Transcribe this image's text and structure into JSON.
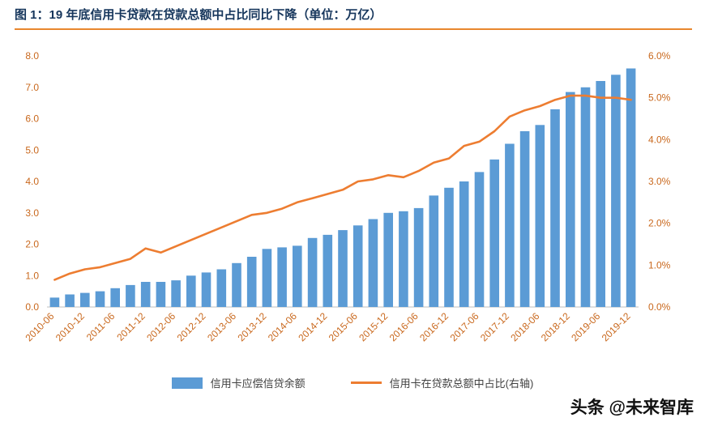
{
  "header": {
    "title": "图 1：19 年底信用卡贷款在贷款总额中占比同比下降（单位：万亿）"
  },
  "colors": {
    "bar": "#5B9BD5",
    "line": "#ED7D31",
    "title": "#16365C",
    "divider": "#E8872E",
    "axis_label": "#C9681D",
    "axis_line": "#BFBFBF",
    "legend_text": "#404040",
    "watermark": "#111111"
  },
  "chart_data": {
    "type": "combo",
    "title": "图 1：19 年底信用卡贷款在贷款总额中占比同比下降（单位：万亿）",
    "x": [
      "2010-06",
      "2010-09",
      "2010-12",
      "2011-03",
      "2011-06",
      "2011-09",
      "2011-12",
      "2012-03",
      "2012-06",
      "2012-09",
      "2012-12",
      "2013-03",
      "2013-06",
      "2013-09",
      "2013-12",
      "2014-03",
      "2014-06",
      "2014-09",
      "2014-12",
      "2015-03",
      "2015-06",
      "2015-09",
      "2015-12",
      "2016-03",
      "2016-06",
      "2016-09",
      "2016-12",
      "2017-03",
      "2017-06",
      "2017-09",
      "2017-12",
      "2018-03",
      "2018-06",
      "2018-09",
      "2018-12",
      "2019-03",
      "2019-06",
      "2019-09",
      "2019-12"
    ],
    "x_label_every": 2,
    "x_labels_shown": [
      "2010-06",
      "2010-12",
      "2011-06",
      "2011-12",
      "2012-06",
      "2012-12",
      "2013-06",
      "2013-12",
      "2014-06",
      "2014-12",
      "2015-06",
      "2015-12",
      "2016-06",
      "2016-12",
      "2017-06",
      "2017-12",
      "2018-06",
      "2018-12",
      "2019-06",
      "2019-12"
    ],
    "series": [
      {
        "name": "信用卡应偿信贷余额",
        "chart_type": "bar",
        "axis": "left",
        "values": [
          0.3,
          0.4,
          0.45,
          0.5,
          0.6,
          0.7,
          0.8,
          0.8,
          0.85,
          1.0,
          1.1,
          1.2,
          1.4,
          1.6,
          1.85,
          1.9,
          1.95,
          2.2,
          2.3,
          2.45,
          2.6,
          2.8,
          3.0,
          3.05,
          3.15,
          3.55,
          3.8,
          4.0,
          4.3,
          4.7,
          5.2,
          5.6,
          5.8,
          6.3,
          6.85,
          7.0,
          7.2,
          7.4,
          7.6
        ]
      },
      {
        "name": "信用卡在贷款总额中占比(右轴)",
        "chart_type": "line",
        "axis": "right",
        "values": [
          0.65,
          0.8,
          0.9,
          0.95,
          1.05,
          1.15,
          1.4,
          1.3,
          1.45,
          1.6,
          1.75,
          1.9,
          2.05,
          2.2,
          2.25,
          2.35,
          2.5,
          2.6,
          2.7,
          2.8,
          3.0,
          3.05,
          3.15,
          3.1,
          3.25,
          3.45,
          3.55,
          3.85,
          3.95,
          4.2,
          4.55,
          4.7,
          4.8,
          4.95,
          5.05,
          5.05,
          5.0,
          5.0,
          4.95
        ]
      }
    ],
    "left_axis": {
      "min": 0,
      "max": 8,
      "step": 1,
      "tick_labels": [
        "0.0",
        "1.0",
        "2.0",
        "3.0",
        "4.0",
        "5.0",
        "6.0",
        "7.0",
        "8.0"
      ]
    },
    "right_axis": {
      "min": 0,
      "max": 6,
      "step": 1,
      "tick_labels": [
        "0.0%",
        "1.0%",
        "2.0%",
        "3.0%",
        "4.0%",
        "5.0%",
        "6.0%"
      ]
    },
    "grid": false,
    "legend_position": "bottom"
  },
  "legend": [
    {
      "label": "信用卡应偿信贷余额",
      "swatch": "bar"
    },
    {
      "label": "信用卡在贷款总额中占比(右轴)",
      "swatch": "line"
    }
  ],
  "watermark": "头条 @未来智库"
}
